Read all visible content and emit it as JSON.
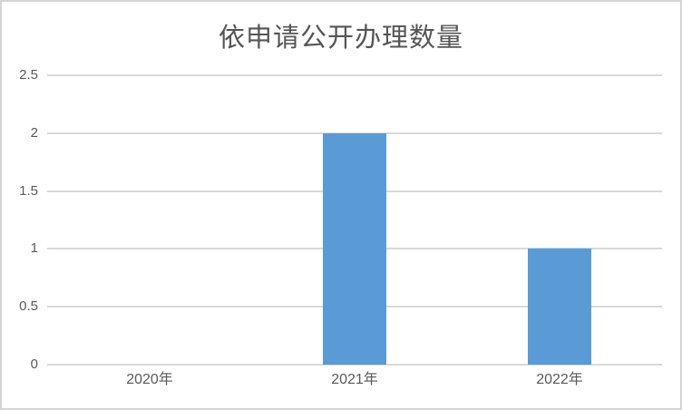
{
  "chart_data": {
    "type": "bar",
    "title": "依申请公开办理数量",
    "categories": [
      "2020年",
      "2021年",
      "2022年"
    ],
    "values": [
      0,
      2,
      1
    ],
    "xlabel": "",
    "ylabel": "",
    "ylim": [
      0,
      2.5
    ],
    "yticks": [
      0,
      0.5,
      1,
      1.5,
      2,
      2.5
    ],
    "ytick_labels": [
      "0",
      "0.5",
      "1",
      "1.5",
      "2",
      "2.5"
    ],
    "grid": true,
    "legend_position": "none",
    "colors": {
      "bar": "#5B9BD5",
      "gridline": "#D9D9D9",
      "axis_labels": "#595959",
      "title": "#555555",
      "frame_border": "#D5D5D5"
    }
  }
}
